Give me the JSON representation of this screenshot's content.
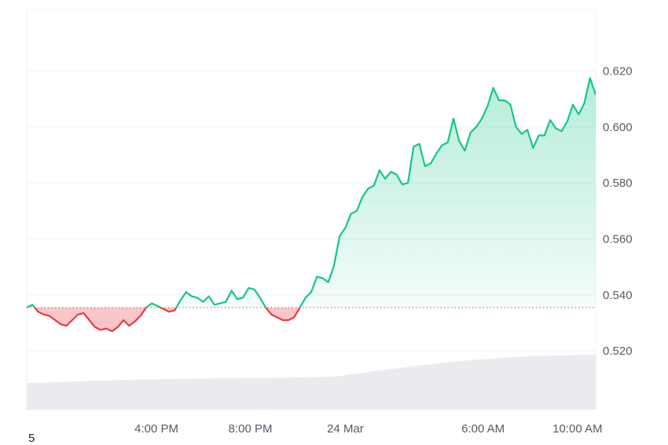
{
  "footer_text": "5",
  "colors": {
    "up_line": "#16c784",
    "down_line": "#ea3943",
    "up_fill": "#16c784",
    "down_fill": "#ea3943",
    "grid": "#eef0f3",
    "volume": "#e9ebef",
    "baseline": "#777777",
    "text": "#555a66"
  },
  "chart_data": {
    "type": "area",
    "baseline": 0.5355,
    "ylim": [
      0.499,
      0.642
    ],
    "yticks": [
      "0.520",
      "0.540",
      "0.560",
      "0.580",
      "0.600",
      "0.620"
    ],
    "xlim": [
      0,
      100
    ],
    "xticks": [
      {
        "x": 22.8,
        "label": "4:00 PM"
      },
      {
        "x": 39.3,
        "label": "8:00 PM"
      },
      {
        "x": 56.0,
        "label": "24 Mar"
      },
      {
        "x": 80.2,
        "label": "6:00 AM"
      },
      {
        "x": 96.8,
        "label": "10:00 AM"
      }
    ],
    "grid": true,
    "price": {
      "x": [
        0,
        1,
        2,
        3,
        4,
        5,
        6,
        7,
        8,
        9,
        10,
        11,
        12,
        13,
        14,
        15,
        16,
        17,
        18,
        19,
        20,
        21,
        22,
        23,
        24,
        25,
        26,
        27,
        28,
        29,
        30,
        31,
        32,
        33,
        34,
        35,
        36,
        37,
        38,
        39,
        40,
        41,
        42,
        43,
        44,
        45,
        46,
        47,
        48,
        49,
        50,
        51,
        52,
        53,
        54,
        55,
        56,
        57,
        58,
        59,
        60,
        61,
        62,
        63,
        64,
        65,
        66,
        67,
        68,
        69,
        70,
        71,
        72,
        73,
        74,
        75,
        76,
        77,
        78,
        79,
        80,
        81,
        82,
        83,
        84,
        85,
        86,
        87,
        88,
        89,
        90,
        91,
        92,
        93,
        94,
        95,
        96,
        97,
        98,
        99,
        100
      ],
      "y": [
        0.5355,
        0.5365,
        0.534,
        0.533,
        0.5325,
        0.531,
        0.5295,
        0.529,
        0.531,
        0.533,
        0.5335,
        0.531,
        0.5285,
        0.5275,
        0.528,
        0.527,
        0.5285,
        0.531,
        0.529,
        0.5305,
        0.5325,
        0.5355,
        0.537,
        0.536,
        0.535,
        0.534,
        0.5345,
        0.538,
        0.541,
        0.5395,
        0.539,
        0.5375,
        0.5395,
        0.5365,
        0.537,
        0.5375,
        0.5415,
        0.5385,
        0.539,
        0.5425,
        0.542,
        0.539,
        0.5355,
        0.533,
        0.532,
        0.531,
        0.531,
        0.532,
        0.5355,
        0.539,
        0.541,
        0.5465,
        0.546,
        0.5445,
        0.5505,
        0.561,
        0.564,
        0.569,
        0.57,
        0.575,
        0.578,
        0.579,
        0.5845,
        0.5815,
        0.584,
        0.583,
        0.5795,
        0.58,
        0.593,
        0.594,
        0.586,
        0.587,
        0.5905,
        0.5935,
        0.5945,
        0.603,
        0.595,
        0.5915,
        0.598,
        0.6,
        0.603,
        0.6075,
        0.614,
        0.6095,
        0.6095,
        0.608,
        0.6,
        0.5975,
        0.599,
        0.5925,
        0.597,
        0.597,
        0.6025,
        0.5995,
        0.5985,
        0.602,
        0.608,
        0.6045,
        0.6085,
        0.6175,
        0.6115
      ]
    },
    "volume": {
      "x": [
        0,
        10,
        20,
        30,
        40,
        50,
        55,
        60,
        65,
        70,
        75,
        80,
        85,
        90,
        95,
        100
      ],
      "y": [
        0.5085,
        0.5092,
        0.5098,
        0.5101,
        0.5103,
        0.5106,
        0.511,
        0.5125,
        0.5138,
        0.515,
        0.5162,
        0.517,
        0.5177,
        0.5182,
        0.5185,
        0.5187
      ]
    }
  }
}
